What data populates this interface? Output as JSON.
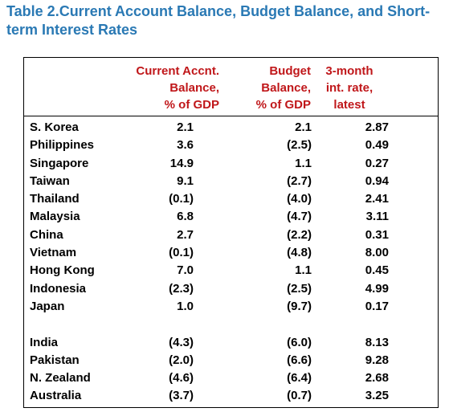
{
  "title": "Table 2.Current Account Balance, Budget Balance, and Short-term Interest Rates",
  "headers": [
    "",
    "Current Accnt.\nBalance,\n% of GDP",
    "Budget\nBalance,\n% of GDP",
    "3-month\nint. rate,\nlatest"
  ],
  "rows": [
    [
      "S. Korea",
      "2.1",
      "2.1",
      "2.87"
    ],
    [
      "Philippines",
      "3.6",
      "(2.5)",
      "0.49"
    ],
    [
      "Singapore",
      "14.9",
      "1.1",
      "0.27"
    ],
    [
      "Taiwan",
      "9.1",
      "(2.7)",
      "0.94"
    ],
    [
      "Thailand",
      "(0.1)",
      "(4.0)",
      "2.41"
    ],
    [
      "Malaysia",
      "6.8",
      "(4.7)",
      "3.11"
    ],
    [
      "China",
      "2.7",
      "(2.2)",
      "0.31"
    ],
    [
      "Vietnam",
      "(0.1)",
      "(4.8)",
      "8.00"
    ],
    [
      "Hong Kong",
      "7.0",
      "1.1",
      "0.45"
    ],
    [
      "Indonesia",
      "(2.3)",
      "(2.5)",
      "4.99"
    ],
    [
      "Japan",
      "1.0",
      "(9.7)",
      "0.17"
    ],
    [
      "",
      "",
      "",
      ""
    ],
    [
      "India",
      "(4.3)",
      "(6.0)",
      "8.13"
    ],
    [
      "Pakistan",
      "(2.0)",
      "(6.6)",
      "9.28"
    ],
    [
      "N. Zealand",
      "(4.6)",
      "(6.4)",
      "2.68"
    ],
    [
      "Australia",
      "(3.7)",
      "(0.7)",
      "3.25"
    ]
  ],
  "colors": {
    "title": "#2a79b4",
    "header": "#c0171a",
    "text": "#000000"
  }
}
